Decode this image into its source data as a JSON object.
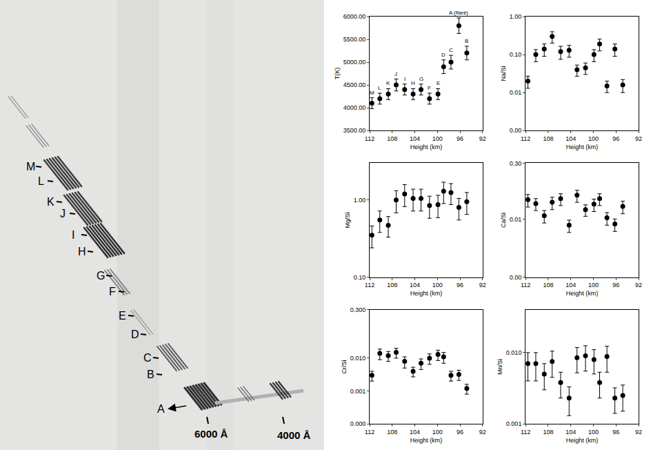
{
  "spectrum_image": {
    "labels": [
      "A",
      "B",
      "C",
      "D",
      "E",
      "F",
      "G",
      "H",
      "I",
      "J",
      "K",
      "L",
      "M"
    ],
    "wavelength_marks": [
      "6000 Å",
      "4000 Å"
    ]
  },
  "chart_data": [
    {
      "type": "scatter",
      "x_label": "Height (km)",
      "y_label": "T(K)",
      "x": [
        111.6,
        110.2,
        108.7,
        107.3,
        105.8,
        104.3,
        102.9,
        101.4,
        99.9,
        98.9,
        97.6,
        96.2,
        94.8
      ],
      "values": [
        4100,
        4200,
        4300,
        4500,
        4400,
        4300,
        4400,
        4200,
        4300,
        4900,
        5000,
        5800,
        5200
      ],
      "errors": [
        120,
        120,
        120,
        130,
        120,
        120,
        120,
        120,
        120,
        150,
        150,
        170,
        150
      ],
      "point_labels": [
        "M",
        "L",
        "K",
        "J",
        "I",
        "H",
        "G",
        "F",
        "E",
        "D",
        "C",
        "A (flare)",
        "B"
      ],
      "xlim": [
        112,
        92
      ],
      "xticks": [
        112,
        108,
        104,
        100,
        96,
        92
      ],
      "ylim": [
        3500,
        6000
      ],
      "yticks": [
        {
          "value": 3500,
          "label": "3500.00"
        },
        {
          "value": 4000,
          "label": "4000.00"
        },
        {
          "value": 4500,
          "label": "4500.00"
        },
        {
          "value": 5000,
          "label": "5000.00"
        },
        {
          "value": 5500,
          "label": "5500.00"
        },
        {
          "value": 6000,
          "label": "6000.00"
        }
      ],
      "marker": "circle",
      "color": "#000000",
      "grid": false
    },
    {
      "type": "scatter",
      "x_label": "Height (km)",
      "y_label": "Na/Si",
      "log": "y",
      "x": [
        111.6,
        110.2,
        108.7,
        107.3,
        105.8,
        104.3,
        102.9,
        101.4,
        99.9,
        98.9,
        97.6,
        96.2,
        94.8
      ],
      "values": [
        0.02,
        0.1,
        0.14,
        0.3,
        0.12,
        0.13,
        0.04,
        0.045,
        0.1,
        0.19,
        0.015,
        0.14,
        0.016
      ],
      "errors": [
        0.007,
        0.035,
        0.05,
        0.1,
        0.045,
        0.045,
        0.013,
        0.015,
        0.035,
        0.065,
        0.005,
        0.05,
        0.006
      ],
      "xlim": [
        112,
        92
      ],
      "xticks": [
        112,
        108,
        104,
        100,
        96,
        92
      ],
      "ylim": [
        0.001,
        1
      ],
      "yticks": [
        {
          "value": 0.001,
          "label": "0.00"
        },
        {
          "value": 0.01,
          "label": "0.01"
        },
        {
          "value": 0.1,
          "label": "0.10"
        },
        {
          "value": 1,
          "label": "1.00"
        }
      ],
      "marker": "circle",
      "color": "#000000",
      "grid": false
    },
    {
      "type": "scatter",
      "x_label": "Height (km)",
      "y_label": "Mg/Si",
      "log": "y",
      "x": [
        111.6,
        110.2,
        108.7,
        107.3,
        105.8,
        104.3,
        102.9,
        101.4,
        99.9,
        98.9,
        97.6,
        96.2,
        94.8
      ],
      "values": [
        0.35,
        0.55,
        0.47,
        1.0,
        1.2,
        1.05,
        1.05,
        0.85,
        0.87,
        1.3,
        1.25,
        0.8,
        0.95
      ],
      "errors": [
        0.11,
        0.17,
        0.14,
        0.32,
        0.38,
        0.33,
        0.33,
        0.27,
        0.28,
        0.4,
        0.38,
        0.25,
        0.3
      ],
      "xlim": [
        112,
        92
      ],
      "xticks": [
        112,
        108,
        104,
        100,
        96,
        92
      ],
      "ylim": [
        0.1,
        3
      ],
      "yticks": [
        {
          "value": 0.1,
          "label": "0.10"
        },
        {
          "value": 1,
          "label": "1.00"
        }
      ],
      "marker": "circle",
      "color": "#000000",
      "grid": false
    },
    {
      "type": "scatter",
      "x_label": "Height (km)",
      "y_label": "Ca/Si",
      "log": "y",
      "x": [
        111.6,
        110.2,
        108.7,
        107.3,
        105.8,
        104.3,
        102.9,
        101.4,
        99.9,
        98.9,
        97.6,
        96.2,
        94.8
      ],
      "values": [
        0.033,
        0.026,
        0.0125,
        0.028,
        0.035,
        0.007,
        0.043,
        0.018,
        0.025,
        0.035,
        0.011,
        0.0075,
        0.022
      ],
      "errors": [
        0.012,
        0.009,
        0.0045,
        0.01,
        0.012,
        0.0025,
        0.015,
        0.006,
        0.009,
        0.012,
        0.004,
        0.0027,
        0.008
      ],
      "xlim": [
        112,
        92
      ],
      "xticks": [
        112,
        108,
        104,
        100,
        96,
        92
      ],
      "ylim": [
        0.0003,
        0.3
      ],
      "yticks": [
        {
          "value": 0.0003,
          "label": "0.00"
        },
        {
          "value": 0.01,
          "label": "0.01"
        },
        {
          "value": 0.3,
          "label": "0.30"
        }
      ],
      "marker": "circle",
      "color": "#000000",
      "grid": false
    },
    {
      "type": "scatter",
      "x_label": "Height (km)",
      "y_label": "Cr/Si",
      "log": "y",
      "x": [
        111.6,
        110.2,
        108.7,
        107.3,
        105.8,
        104.3,
        102.9,
        101.4,
        99.9,
        98.9,
        97.6,
        96.2,
        94.8
      ],
      "values": [
        0.003,
        0.014,
        0.012,
        0.015,
        0.008,
        0.004,
        0.007,
        0.01,
        0.013,
        0.011,
        0.003,
        0.0032,
        0.0012
      ],
      "errors": [
        0.001,
        0.005,
        0.004,
        0.005,
        0.003,
        0.0013,
        0.0025,
        0.0035,
        0.0045,
        0.004,
        0.001,
        0.0011,
        0.0004
      ],
      "xlim": [
        112,
        92
      ],
      "xticks": [
        112,
        108,
        104,
        100,
        96,
        92
      ],
      "ylim": [
        0.0001,
        0.3
      ],
      "yticks": [
        {
          "value": 0.0001,
          "label": "0.000"
        },
        {
          "value": 0.001,
          "label": "0.001"
        },
        {
          "value": 0.01,
          "label": "0.010"
        },
        {
          "value": 0.3,
          "label": "0.300"
        }
      ],
      "marker": "circle",
      "color": "#000000",
      "grid": false
    },
    {
      "type": "scatter",
      "x_label": "Height (km)",
      "y_label": "Mn/Si",
      "log": "y",
      "x": [
        111.6,
        110.2,
        108.7,
        107.3,
        105.8,
        104.3,
        102.9,
        101.4,
        99.9,
        98.9,
        97.6,
        96.2,
        94.8
      ],
      "values": [
        0.007,
        0.007,
        0.005,
        0.0075,
        0.0038,
        0.0023,
        0.0085,
        0.009,
        0.008,
        0.0038,
        0.0088,
        0.0023,
        0.0025
      ],
      "errors": [
        0.003,
        0.003,
        0.002,
        0.003,
        0.0015,
        0.001,
        0.0033,
        0.0035,
        0.003,
        0.0015,
        0.0035,
        0.0009,
        0.001
      ],
      "xlim": [
        112,
        92
      ],
      "xticks": [
        112,
        108,
        104,
        100,
        96,
        92
      ],
      "ylim": [
        0.001,
        0.04
      ],
      "yticks": [
        {
          "value": 0.001,
          "label": "0.001"
        },
        {
          "value": 0.01,
          "label": "0.010"
        }
      ],
      "marker": "circle",
      "color": "#000000",
      "grid": false
    }
  ]
}
